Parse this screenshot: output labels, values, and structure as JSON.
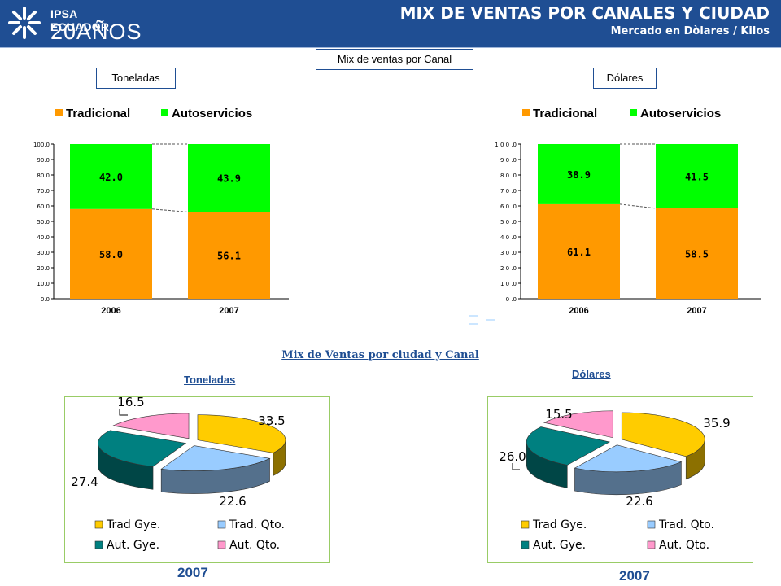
{
  "header": {
    "logo_name": "IPSA ECUADOR",
    "logo_years": "20AÑOS",
    "title": "MIX DE VENTAS  POR CANALES Y CIUDAD",
    "subtitle": "Mercado en Dòlares / Kilos"
  },
  "labels": {
    "mix_canal": "Mix de ventas por Canal",
    "toneladas": "Toneladas",
    "dolares": "Dólares",
    "mix_ciudad": "Mix de Ventas por ciudad y Canal",
    "pie_toneladas": "Toneladas",
    "pie_dolares": "Dólares",
    "year_left": "2007",
    "year_right": "2007"
  },
  "colors": {
    "header_bg": "#1f4e93",
    "tradicional": "#ff9900",
    "autoservicios": "#00ff00",
    "trad_gye": "#ffcc00",
    "trad_qto": "#99ccff",
    "aut_gye": "#008080",
    "aut_qto": "#ff99cc",
    "pie_frame": "#99cc66"
  },
  "chart_data": [
    {
      "type": "bar",
      "stacked": true,
      "categories": [
        "2006",
        "2007"
      ],
      "series": [
        {
          "name": "Tradicional",
          "values": [
            58.0,
            56.1
          ],
          "color": "#ff9900"
        },
        {
          "name": "Autoservicios",
          "values": [
            42.0,
            43.9
          ],
          "color": "#00ff00"
        }
      ],
      "ylim": [
        0,
        100
      ],
      "yticks": [
        "0.0",
        "10.0",
        "20.0",
        "30.0",
        "40.0",
        "50.0",
        "60.0",
        "70.0",
        "80.0",
        "90.0",
        "100.0"
      ],
      "legend": "top"
    },
    {
      "type": "bar",
      "stacked": true,
      "categories": [
        "2006",
        "2007"
      ],
      "series": [
        {
          "name": "Tradicional",
          "values": [
            61.1,
            58.5
          ],
          "color": "#ff9900"
        },
        {
          "name": "Autoservicios",
          "values": [
            38.9,
            41.5
          ],
          "color": "#00ff00"
        }
      ],
      "ylim": [
        0,
        100
      ],
      "yticks": [
        "1 0 0 .0",
        "9 0 .0",
        "8 0 .0",
        "7 0 .0",
        "6 0 .0",
        "5 0 .0",
        "4 0 .0",
        "3 0 .0",
        "2 0 .0",
        "1 0 .0",
        "0 .0"
      ],
      "legend": "top"
    },
    {
      "type": "pie",
      "categories": [
        "Trad Gye.",
        "Trad. Qto.",
        "Aut. Gye.",
        "Aut. Qto."
      ],
      "values": [
        33.5,
        22.6,
        27.4,
        16.5
      ],
      "value_labels": [
        "33.5",
        "22.6",
        "27.4",
        "16.5"
      ],
      "legend": "bottom"
    },
    {
      "type": "pie",
      "categories": [
        "Trad Gye.",
        "Trad. Qto.",
        "Aut. Gye.",
        "Aut. Qto."
      ],
      "values": [
        35.9,
        22.6,
        26.0,
        15.5
      ],
      "value_labels": [
        "35.9",
        "22.6",
        "26.0",
        "15.5"
      ],
      "legend": "bottom"
    }
  ]
}
